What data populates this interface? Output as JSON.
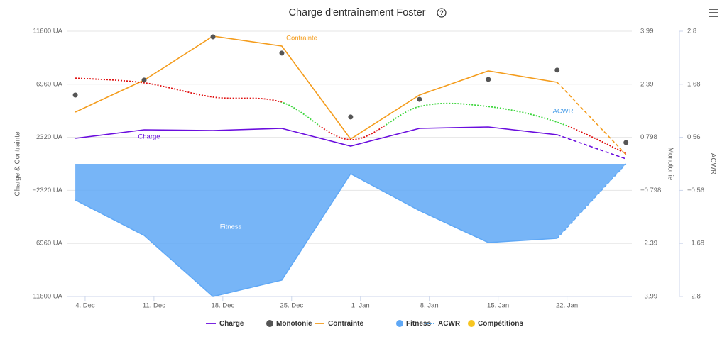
{
  "chart_data": {
    "type": "line",
    "title": "Charge d'entraînement Foster",
    "ylabel": "Charge & Contrainte",
    "y2label": "Monotonie",
    "y3label": "ACWR",
    "x": [
      3,
      10,
      17,
      24,
      31,
      38,
      45,
      52,
      59
    ],
    "xlim": [
      2.2,
      59.6
    ],
    "xticks": [
      {
        "value": 4,
        "label": "4. Dec"
      },
      {
        "value": 11,
        "label": "11. Dec"
      },
      {
        "value": 18,
        "label": "18. Dec"
      },
      {
        "value": 25,
        "label": "25. Dec"
      },
      {
        "value": 32,
        "label": "1. Jan"
      },
      {
        "value": 39,
        "label": "8. Jan"
      },
      {
        "value": 46,
        "label": "15. Jan"
      },
      {
        "value": 53,
        "label": "22. Jan"
      }
    ],
    "ylim": [
      -11600,
      11600
    ],
    "yticks": [
      {
        "value": 11600,
        "label": "11600 UA"
      },
      {
        "value": 6960,
        "label": "6960 UA"
      },
      {
        "value": 2320,
        "label": "2320 UA"
      },
      {
        "value": -2320,
        "label": "−2320 UA"
      },
      {
        "value": -6960,
        "label": "−6960 UA"
      },
      {
        "value": -11600,
        "label": "−11600 UA"
      }
    ],
    "y2lim": [
      -3.99,
      3.99
    ],
    "y2ticks": [
      3.99,
      2.39,
      0.798,
      {
        "value": -0.798,
        "label": "−0.798"
      },
      {
        "value": -2.39,
        "label": "−2.39"
      },
      {
        "value": -3.99,
        "label": "−3.99"
      }
    ],
    "y3lim": [
      -2.8,
      2.8
    ],
    "y3ticks": [
      2.8,
      1.68,
      0.56,
      {
        "value": -0.56,
        "label": "−0.56"
      },
      {
        "value": -1.68,
        "label": "−1.68"
      },
      {
        "value": -2.8,
        "label": "−2.8"
      }
    ],
    "grid": true,
    "series": [
      {
        "name": "Charge",
        "type": "line",
        "color": "#6a0dde",
        "values": [
          2233,
          2977,
          2915,
          3101,
          1551,
          3101,
          3225,
          2543,
          434
        ]
      },
      {
        "name": "Monotonie",
        "type": "scatter",
        "color": "#555555",
        "axis": "y2",
        "values": [
          2.07,
          2.52,
          3.82,
          3.33,
          1.41,
          1.94,
          2.54,
          2.82,
          0.64
        ]
      },
      {
        "name": "Contrainte",
        "type": "line",
        "color": "#f49c1c",
        "values": [
          4528,
          7320,
          11165,
          10297,
          2171,
          6017,
          8126,
          7133,
          806
        ]
      },
      {
        "name": "Fitness",
        "type": "area",
        "color": "#5fa8f6",
        "values": [
          -3164,
          -6265,
          -11600,
          -10173,
          -868,
          -4094,
          -6885,
          -6513,
          0
        ]
      },
      {
        "name": "ACWR",
        "type": "spline",
        "color": "#4a9ee8",
        "axis": "y3",
        "values": [
          1.81,
          1.71,
          1.41,
          1.3,
          0.51,
          1.21,
          1.21,
          0.88,
          0.22
        ],
        "zones": [
          {
            "from": 0.8,
            "to": 1.3,
            "color": "#3dd63d"
          }
        ],
        "zone_outside_color": "#e01010"
      },
      {
        "name": "Compétitions",
        "type": "scatter",
        "color": "#f7c520",
        "values": []
      }
    ]
  }
}
